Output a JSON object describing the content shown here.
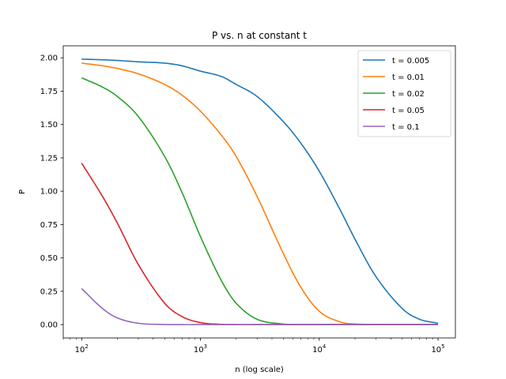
{
  "chart_data": {
    "type": "line",
    "title": "P vs. n at constant t",
    "xlabel": "n (log scale)",
    "ylabel": "P",
    "xscale": "log",
    "xlim": [
      70,
      140000
    ],
    "ylim": [
      -0.1,
      2.09
    ],
    "x_ticks": [
      {
        "value": 100,
        "base": "10",
        "exp": "2"
      },
      {
        "value": 1000,
        "base": "10",
        "exp": "3"
      },
      {
        "value": 10000,
        "base": "10",
        "exp": "4"
      },
      {
        "value": 100000,
        "base": "10",
        "exp": "5"
      }
    ],
    "y_ticks": [
      "0.00",
      "0.25",
      "0.50",
      "0.75",
      "1.00",
      "1.25",
      "1.50",
      "1.75",
      "2.00"
    ],
    "grid": false,
    "legend_position": "top-right",
    "x": [
      100,
      150,
      200,
      300,
      500,
      700,
      1000,
      1500,
      2000,
      3000,
      5000,
      7000,
      10000,
      15000,
      20000,
      30000,
      50000,
      70000,
      100000
    ],
    "series": [
      {
        "name": "t = 0.005",
        "color": "#1f77b4",
        "values": [
          1.99,
          1.985,
          1.98,
          1.97,
          1.96,
          1.94,
          1.9,
          1.86,
          1.8,
          1.71,
          1.52,
          1.36,
          1.15,
          0.86,
          0.64,
          0.36,
          0.12,
          0.04,
          0.01
        ]
      },
      {
        "name": "t = 0.01",
        "color": "#ff7f0e",
        "values": [
          1.96,
          1.94,
          1.92,
          1.88,
          1.8,
          1.72,
          1.6,
          1.42,
          1.26,
          0.96,
          0.53,
          0.28,
          0.1,
          0.02,
          0.005,
          0.001,
          0.0,
          0.0,
          0.0
        ]
      },
      {
        "name": "t = 0.02",
        "color": "#2ca02c",
        "values": [
          1.85,
          1.78,
          1.71,
          1.56,
          1.26,
          0.99,
          0.66,
          0.33,
          0.16,
          0.04,
          0.004,
          0.0,
          0.0,
          0.0,
          0.0,
          0.0,
          0.0,
          0.0,
          0.0
        ]
      },
      {
        "name": "t = 0.05",
        "color": "#d62728",
        "values": [
          1.21,
          0.96,
          0.76,
          0.45,
          0.16,
          0.06,
          0.015,
          0.002,
          0.0,
          0.0,
          0.0,
          0.0,
          0.0,
          0.0,
          0.0,
          0.0,
          0.0,
          0.0,
          0.0
        ]
      },
      {
        "name": "t = 0.1",
        "color": "#9467bd",
        "values": [
          0.27,
          0.12,
          0.05,
          0.01,
          0.001,
          0.0,
          0.0,
          0.0,
          0.0,
          0.0,
          0.0,
          0.0,
          0.0,
          0.0,
          0.0,
          0.0,
          0.0,
          0.0,
          0.0
        ]
      }
    ]
  }
}
